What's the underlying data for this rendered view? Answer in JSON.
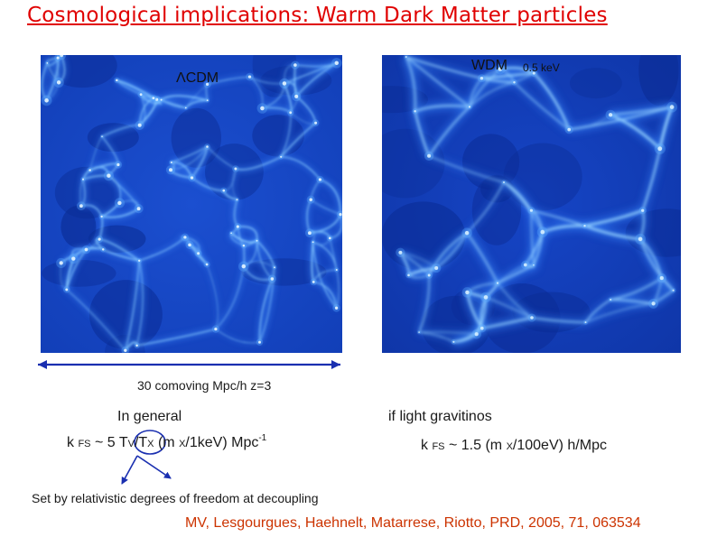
{
  "title": "Cosmological implications: Warm Dark Matter particles",
  "panels": {
    "left_label": "ΛCDM",
    "right_label": "WDM",
    "right_mass": "0.5 keV"
  },
  "scale_label": "30 comoving Mpc/h   z=3",
  "left_column": {
    "heading": "In general",
    "formula": {
      "k": "k",
      "fs": "FS",
      "approx": "~ 5",
      "tv": "T",
      "tv_sub": "V",
      "slash": "/",
      "tx": "T",
      "tx_sub": "X",
      "paren_open": "(m",
      "x": "X",
      "rest": "/1keV) Mpc",
      "exp": "-1"
    }
  },
  "right_column": {
    "heading": "if light gravitinos",
    "formula": {
      "k": "k",
      "fs": "FS",
      "approx": "~ 1.5  (m",
      "x": "X",
      "rest": "/100eV) h/Mpc"
    }
  },
  "note": "Set by relativistic degrees of freedom at decoupling",
  "citation": "MV, Lesgourgues, Haehnelt, Matarrese, Riotto,  PRD,  2005, 71, 063534",
  "colors": {
    "title": "#e00000",
    "citation": "#cc3300",
    "arrow": "#1a2fb0",
    "sim_dark": "#0a2a8c",
    "sim_light": "#9fd8ff"
  }
}
